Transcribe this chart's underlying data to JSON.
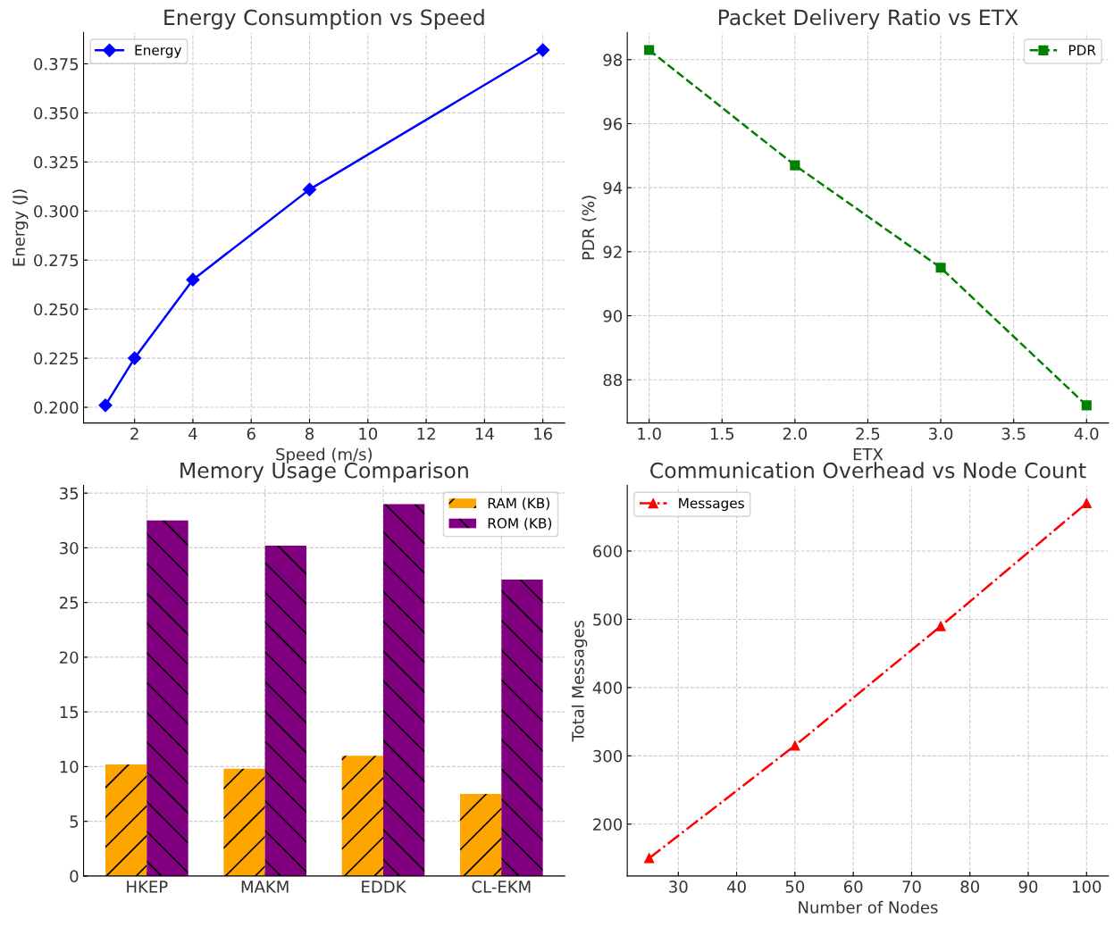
{
  "chart_data": [
    {
      "type": "line",
      "title": "Energy Consumption vs Speed",
      "xlabel": "Speed (m/s)",
      "ylabel": "Energy (J)",
      "x": [
        1,
        2,
        4,
        8,
        16
      ],
      "series": [
        {
          "name": "Energy",
          "color": "#0000ff",
          "values": [
            0.201,
            0.225,
            0.265,
            0.311,
            0.382
          ]
        }
      ],
      "xlim": [
        0.25,
        16.75
      ],
      "xticks": [
        2,
        4,
        6,
        8,
        10,
        12,
        14,
        16
      ],
      "ylim": [
        0.192,
        0.391
      ],
      "yticks": [
        {
          "value": 0.2,
          "label": "0.200"
        },
        {
          "value": 0.225,
          "label": "0.225"
        },
        {
          "value": 0.25,
          "label": "0.250"
        },
        {
          "value": 0.275,
          "label": "0.275"
        },
        {
          "value": 0.3,
          "label": "0.300"
        },
        {
          "value": 0.325,
          "label": "0.325"
        },
        {
          "value": 0.35,
          "label": "0.350"
        },
        {
          "value": 0.375,
          "label": "0.375"
        }
      ],
      "marker": "diamond",
      "line_style": "solid",
      "grid": true,
      "legend": "top left"
    },
    {
      "type": "line",
      "title": "Packet Delivery Ratio vs ETX",
      "xlabel": "ETX",
      "ylabel": "PDR (%)",
      "x": [
        1,
        2,
        3,
        4
      ],
      "series": [
        {
          "name": "PDR",
          "color": "#008000",
          "values": [
            98.3,
            94.7,
            91.5,
            87.2
          ]
        }
      ],
      "xlim": [
        0.85,
        4.15
      ],
      "xticks": [
        {
          "value": 1,
          "label": "1.0"
        },
        {
          "value": 1.5,
          "label": "1.5"
        },
        {
          "value": 2,
          "label": "2.0"
        },
        {
          "value": 2.5,
          "label": "2.5"
        },
        {
          "value": 3,
          "label": "3.0"
        },
        {
          "value": 3.5,
          "label": "3.5"
        },
        {
          "value": 4,
          "label": "4.0"
        }
      ],
      "ylim": [
        86.65,
        98.85
      ],
      "yticks": [
        88,
        90,
        92,
        94,
        96,
        98
      ],
      "marker": "square",
      "line_style": "dashed",
      "grid": true,
      "legend": "top right"
    },
    {
      "type": "bar",
      "title": "Memory Usage Comparison",
      "categories": [
        "HKEP",
        "MAKM",
        "EDDK",
        "CL-EKM"
      ],
      "series": [
        {
          "name": "RAM (KB)",
          "color": "#ffa500",
          "values": [
            10.2,
            9.8,
            11.0,
            7.5
          ]
        },
        {
          "name": "ROM (KB)",
          "color": "#800080",
          "values": [
            32.5,
            30.2,
            34.0,
            27.1
          ]
        }
      ],
      "ylim": [
        0,
        35.7
      ],
      "yticks": [
        0,
        5,
        10,
        15,
        20,
        25,
        30,
        35
      ],
      "grid": true,
      "legend": "top right"
    },
    {
      "type": "line",
      "title": "Communication Overhead vs Node Count",
      "xlabel": "Number of Nodes",
      "ylabel": "Total Messages",
      "x": [
        25,
        50,
        75,
        100
      ],
      "series": [
        {
          "name": "Messages",
          "color": "#ff0000",
          "values": [
            150,
            315,
            490,
            670
          ]
        }
      ],
      "xlim": [
        21.25,
        103.75
      ],
      "xticks": [
        30,
        40,
        50,
        60,
        70,
        80,
        90,
        100
      ],
      "ylim": [
        124,
        696
      ],
      "yticks": [
        200,
        300,
        400,
        500,
        600
      ],
      "marker": "triangle",
      "line_style": "dashdot",
      "grid": true,
      "legend": "top left"
    }
  ]
}
